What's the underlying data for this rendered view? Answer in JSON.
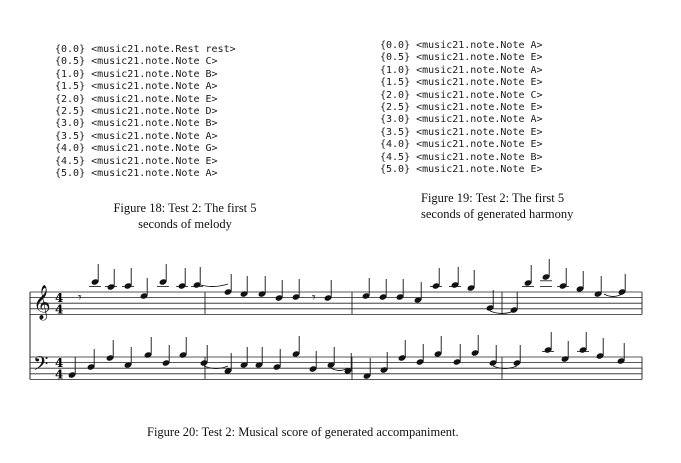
{
  "figure18": {
    "lines": [
      "{0.0} <music21.note.Rest rest>",
      "{0.5} <music21.note.Note C>",
      "{1.0} <music21.note.Note B>",
      "{1.5} <music21.note.Note A>",
      "{2.0} <music21.note.Note E>",
      "{2.5} <music21.note.Note D>",
      "{3.0} <music21.note.Note B>",
      "{3.5} <music21.note.Note A>",
      "{4.0} <music21.note.Note G>",
      "{4.5} <music21.note.Note E>",
      "{5.0} <music21.note.Note A>"
    ],
    "caption": "Figure 18: Test 2: The first 5 seconds of melody"
  },
  "figure19": {
    "lines": [
      "{0.0} <music21.note.Note A>",
      "{0.5} <music21.note.Note E>",
      "{1.0} <music21.note.Note A>",
      "{1.5} <music21.note.Note E>",
      "{2.0} <music21.note.Note C>",
      "{2.5} <music21.note.Note E>",
      "{3.0} <music21.note.Note A>",
      "{3.5} <music21.note.Note E>",
      "{4.0} <music21.note.Note E>",
      "{4.5} <music21.note.Note B>",
      "{5.0} <music21.note.Note E>"
    ],
    "caption": "Figure 19: Test 2: The first 5 seconds of generated harmony"
  },
  "figure20": {
    "caption": "Figure 20: Test 2: Musical score of generated accompaniment.",
    "time_signature": "4/4",
    "treble_symbol": "𝄞",
    "bass_symbol": "𝄢",
    "rest_symbol": "𝄾"
  }
}
